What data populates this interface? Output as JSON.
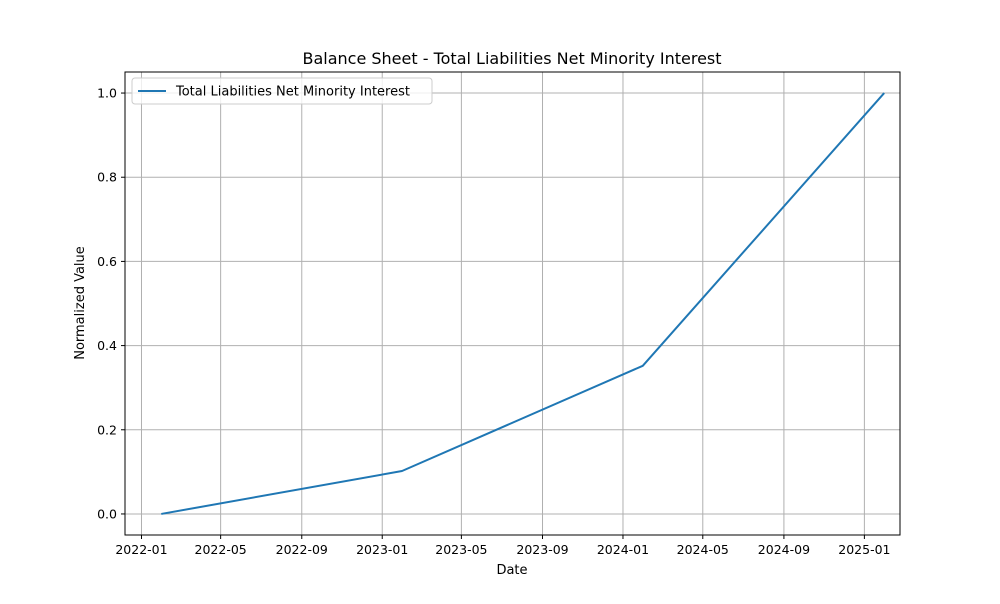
{
  "chart_data": {
    "type": "line",
    "title": "Balance Sheet - Total Liabilities Net Minority Interest",
    "xlabel": "Date",
    "ylabel": "Normalized Value",
    "x_ticks": [
      "2022-01",
      "2022-05",
      "2022-09",
      "2023-01",
      "2023-05",
      "2023-09",
      "2024-01",
      "2024-05",
      "2024-09",
      "2025-01"
    ],
    "y_ticks": [
      "0.0",
      "0.2",
      "0.4",
      "0.6",
      "0.8",
      "1.0"
    ],
    "ylim": [
      -0.05,
      1.05
    ],
    "xlim": [
      "2021-12-07",
      "2025-02-24"
    ],
    "grid": true,
    "legend_position": "top-left",
    "series": [
      {
        "name": "Total Liabilities Net Minority Interest",
        "color": "#1f77b4",
        "x": [
          "2022-01-31",
          "2023-01-31",
          "2024-01-31",
          "2025-01-31"
        ],
        "y": [
          0.0,
          0.102,
          0.352,
          1.0
        ]
      }
    ]
  }
}
